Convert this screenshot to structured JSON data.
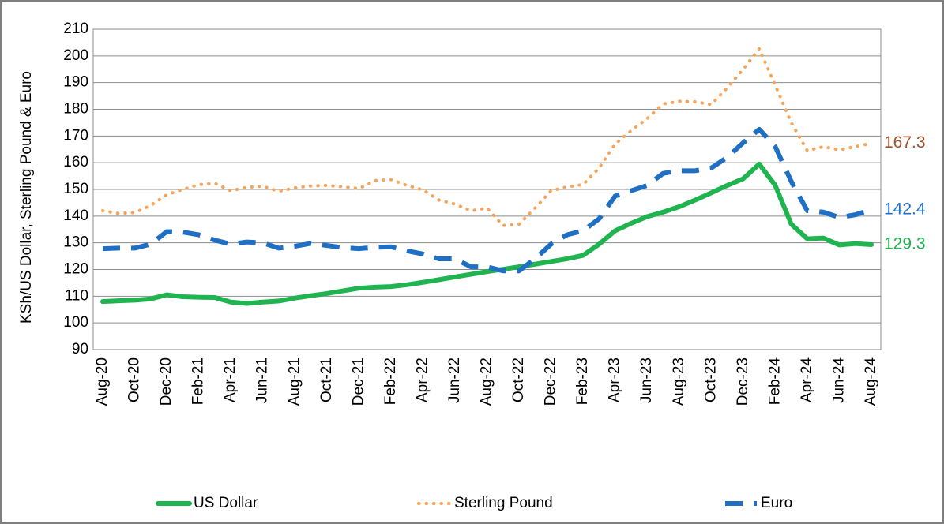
{
  "chart_data": {
    "type": "line",
    "y_label": "KSh/US Dollar, Sterling Pound & Euro",
    "categories": [
      "Aug-20",
      null,
      "Oct-20",
      null,
      "Dec-20",
      null,
      "Feb-21",
      null,
      "Apr-21",
      null,
      "Jun-21",
      null,
      "Aug-21",
      null,
      "Oct-21",
      null,
      "Dec-21",
      null,
      "Feb-22",
      null,
      "Apr-22",
      null,
      "Jun-22",
      null,
      "Aug-22",
      null,
      "Oct-22",
      null,
      "Dec-22",
      null,
      "Feb-23",
      null,
      "Apr-23",
      null,
      "Jun-23",
      null,
      "Aug-23",
      null,
      "Oct-23",
      null,
      "Dec-23",
      null,
      "Feb-24",
      null,
      "Apr-24",
      null,
      "Jun-24",
      null,
      "Aug-24"
    ],
    "series": [
      {
        "name": "US Dollar",
        "color": "#1fb44f",
        "label_color": "#1fb44f",
        "line_style": "solid",
        "values": [
          108,
          108.3,
          108.5,
          109,
          110.5,
          109.8,
          109.6,
          109.5,
          107.8,
          107.3,
          107.8,
          108.2,
          109.3,
          110.2,
          111,
          112,
          113,
          113.4,
          113.6,
          114.3,
          115.2,
          116.2,
          117.2,
          118.2,
          119.2,
          120.1,
          121,
          122,
          123,
          124,
          125.3,
          129.5,
          134.5,
          137.3,
          139.8,
          141.5,
          143.5,
          146,
          148.7,
          151.5,
          154,
          159.5,
          151.5,
          137,
          131.5,
          131.8,
          129.2,
          129.7,
          129.3
        ]
      },
      {
        "name": "Sterling Pound",
        "color": "#f5a55a",
        "label_color": "#a0522d",
        "line_style": "dotted",
        "values": [
          142,
          141,
          141.3,
          144,
          148,
          150,
          151.8,
          152.3,
          149.5,
          150.8,
          151.2,
          149.3,
          150.6,
          151.3,
          151.5,
          151,
          150.3,
          153.3,
          153.7,
          151.5,
          149.8,
          146,
          144.5,
          142,
          143,
          136.5,
          137,
          143,
          149.5,
          151,
          151.8,
          158,
          167,
          172,
          176.5,
          182,
          183,
          182.8,
          181.8,
          188,
          195,
          202.7,
          189,
          175,
          164.5,
          166,
          164.8,
          166,
          167.3
        ]
      },
      {
        "name": "Euro",
        "color": "#1f6fc4",
        "label_color": "#1f6fc4",
        "line_style": "dashed",
        "values": [
          127.8,
          128,
          128,
          129.5,
          134.2,
          134,
          133,
          131,
          129.5,
          130.3,
          130,
          128,
          128.7,
          129.8,
          129,
          128.2,
          127.8,
          128.3,
          128.5,
          127,
          125.8,
          124,
          124,
          121,
          121,
          119.5,
          119.5,
          124,
          129.5,
          133,
          134.5,
          139,
          147.5,
          149.5,
          151.5,
          156,
          157,
          157,
          158,
          162,
          167.5,
          172.5,
          166,
          153,
          142,
          141.5,
          139.5,
          140.5,
          142.4
        ]
      }
    ],
    "ylim": [
      90,
      210
    ],
    "yticks": [
      90,
      100,
      110,
      120,
      130,
      140,
      150,
      160,
      170,
      180,
      190,
      200,
      210
    ],
    "grid": true,
    "legend": "bottom"
  }
}
